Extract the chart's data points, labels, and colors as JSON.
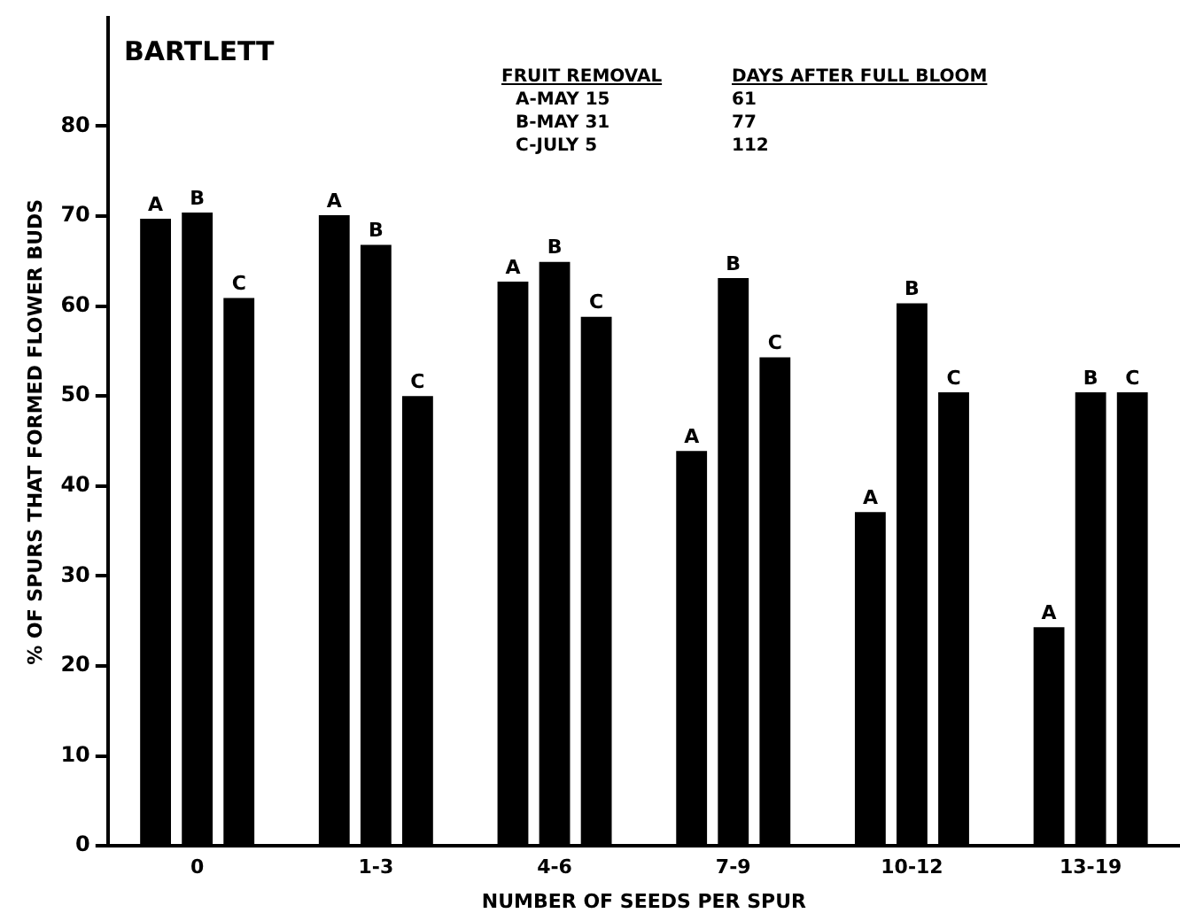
{
  "chart_data": {
    "type": "bar",
    "title": "BARTLETT",
    "xlabel": "NUMBER OF SEEDS PER SPUR",
    "ylabel": "% OF SPURS THAT FORMED FLOWER BUDS",
    "categories": [
      "0",
      "1-3",
      "4-6",
      "7-9",
      "10-12",
      "13-19"
    ],
    "series": [
      {
        "name": "A",
        "color": "#000000",
        "values": [
          69.7,
          70.1,
          62.7,
          43.9,
          37.1,
          24.3
        ]
      },
      {
        "name": "B",
        "color": "#000000",
        "values": [
          70.4,
          66.8,
          64.9,
          63.1,
          60.3,
          50.4
        ]
      },
      {
        "name": "C",
        "color": "#000000",
        "values": [
          60.9,
          50,
          58.8,
          54.3,
          50.4,
          50.4
        ]
      }
    ],
    "annotations": [
      "FRUIT REMOVAL",
      "DAYS AFTER FULL BLOOM",
      "A-MAY 15",
      "61",
      "B-MAY 31",
      "77",
      "C-JULY 5",
      "112"
    ],
    "ylim": [
      0,
      92
    ],
    "yticks": [
      0,
      10,
      20,
      30,
      40,
      50,
      60,
      70,
      80
    ],
    "grid": false,
    "legend": false
  }
}
